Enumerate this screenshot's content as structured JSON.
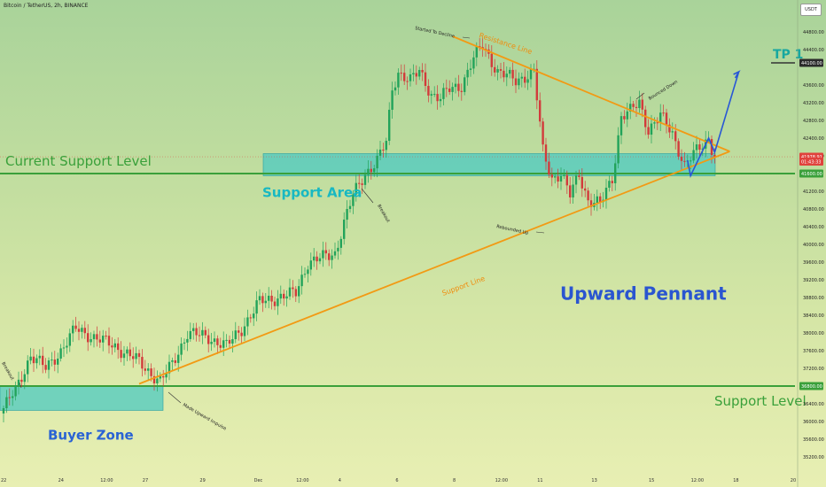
{
  "header": {
    "ticker": "Bitcoin / TetherUS, 2h, BINANCE",
    "currency_button": "USDT"
  },
  "colors": {
    "up": "#22a35a",
    "down": "#d23b3b",
    "support_green": "#3aa03a",
    "trend_orange": "#f29a14",
    "zone_fill": "#4cc9c2",
    "projection_blue": "#2857d6",
    "current_price_red": "#e0423c",
    "tp_box": "#2a2a2a"
  },
  "chart_data": {
    "type": "candlestick",
    "title": "Bitcoin / TetherUS, 2h, BINANCE",
    "y_range": [
      34950,
      45250
    ],
    "y_ticks": [
      35200,
      35600,
      36000,
      36400,
      37200,
      37600,
      38000,
      38400,
      38800,
      39200,
      39600,
      40000,
      40400,
      40800,
      41200,
      42000,
      42400,
      42800,
      43200,
      43600,
      44400,
      44800
    ],
    "x_ticks": [
      {
        "label": "22",
        "bar": 0
      },
      {
        "label": "24",
        "bar": 19
      },
      {
        "label": "12:00",
        "bar": 33
      },
      {
        "label": "27",
        "bar": 47
      },
      {
        "label": "29",
        "bar": 66
      },
      {
        "label": "Dec",
        "bar": 84
      },
      {
        "label": "12:00",
        "bar": 98
      },
      {
        "label": "4",
        "bar": 112
      },
      {
        "label": "6",
        "bar": 131
      },
      {
        "label": "8",
        "bar": 150
      },
      {
        "label": "12:00",
        "bar": 164
      },
      {
        "label": "11",
        "bar": 178
      },
      {
        "label": "13",
        "bar": 196
      },
      {
        "label": "15",
        "bar": 215
      },
      {
        "label": "12:00",
        "bar": 229
      },
      {
        "label": "18",
        "bar": 243
      },
      {
        "label": "20",
        "bar": 262
      }
    ],
    "bar_count": 237,
    "ohlc_anchor_closes": [
      [
        0,
        36300
      ],
      [
        4,
        36700
      ],
      [
        9,
        37500
      ],
      [
        14,
        37200
      ],
      [
        19,
        37600
      ],
      [
        24,
        38100
      ],
      [
        30,
        37900
      ],
      [
        37,
        37700
      ],
      [
        44,
        37400
      ],
      [
        52,
        36900
      ],
      [
        56,
        37300
      ],
      [
        61,
        38000
      ],
      [
        68,
        37900
      ],
      [
        74,
        37700
      ],
      [
        79,
        38100
      ],
      [
        85,
        38700
      ],
      [
        91,
        38800
      ],
      [
        97,
        38900
      ],
      [
        101,
        39600
      ],
      [
        106,
        39700
      ],
      [
        110,
        39800
      ],
      [
        113,
        40500
      ],
      [
        116,
        41100
      ],
      [
        120,
        41600
      ],
      [
        124,
        41900
      ],
      [
        127,
        42300
      ],
      [
        129,
        43500
      ],
      [
        131,
        43900
      ],
      [
        135,
        43700
      ],
      [
        138,
        43900
      ],
      [
        142,
        43400
      ],
      [
        145,
        43300
      ],
      [
        148,
        43500
      ],
      [
        152,
        43600
      ],
      [
        156,
        44200
      ],
      [
        159,
        44500
      ],
      [
        164,
        43900
      ],
      [
        170,
        43700
      ],
      [
        176,
        43900
      ],
      [
        179,
        42100
      ],
      [
        182,
        41500
      ],
      [
        185,
        41600
      ],
      [
        188,
        41100
      ],
      [
        191,
        41600
      ],
      [
        194,
        41000
      ],
      [
        198,
        40900
      ],
      [
        202,
        41500
      ],
      [
        205,
        42900
      ],
      [
        208,
        43000
      ],
      [
        211,
        43200
      ],
      [
        214,
        42600
      ],
      [
        218,
        42900
      ],
      [
        222,
        42500
      ],
      [
        226,
        41800
      ],
      [
        230,
        42100
      ],
      [
        234,
        42400
      ],
      [
        236,
        41980
      ]
    ],
    "levels": {
      "current_support": 41600,
      "support_level": 36800,
      "tp1": 44100,
      "current_price": 41978.91,
      "support_area": [
        41550,
        42050
      ],
      "buyer_zone": [
        36250,
        36800
      ]
    },
    "price_boxes": [
      {
        "label": "44100.00",
        "value": 44100,
        "kind": "tp"
      },
      {
        "label": "41978.91",
        "value": 41978.91,
        "kind": "price"
      },
      {
        "label": "01:43:33",
        "value": 41870,
        "kind": "timer"
      },
      {
        "label": "41600.00",
        "value": 41600,
        "kind": "level"
      },
      {
        "label": "36800.00",
        "value": 36800,
        "kind": "level"
      }
    ],
    "trendlines": [
      {
        "name": "Resistance Line",
        "from": {
          "bar": 149,
          "price": 44700
        },
        "to": {
          "bar": 241,
          "price": 42100
        }
      },
      {
        "name": "Support Line",
        "from": {
          "bar": 45,
          "price": 36850
        },
        "to": {
          "bar": 241,
          "price": 42100
        }
      }
    ],
    "projection_path": [
      {
        "bar": 227,
        "price": 41900
      },
      {
        "bar": 228,
        "price": 41550
      },
      {
        "bar": 234,
        "price": 42400
      },
      {
        "bar": 236,
        "price": 42080
      },
      {
        "bar": 244,
        "price": 43900
      }
    ],
    "annotations": {
      "current_support_label": "Current Support Level",
      "support_level_label": "Support Level",
      "support_area_label": "Support Area",
      "buyer_zone_label": "Buyer Zone",
      "pennant_label": "Upward Pennant",
      "tp_label": "TP 1",
      "resistance_label": "Resistance Line",
      "support_line_label": "Support Line",
      "notes": [
        {
          "text": "Breakout",
          "key": "breakout_left"
        },
        {
          "text": "Made Upward Impulse",
          "key": "impulse"
        },
        {
          "text": "Breakout",
          "key": "breakout_mid"
        },
        {
          "text": "Started To Decline",
          "key": "decline"
        },
        {
          "text": "Rebounded Up",
          "key": "rebound"
        },
        {
          "text": "Bounced Down",
          "key": "bounce"
        }
      ]
    }
  }
}
